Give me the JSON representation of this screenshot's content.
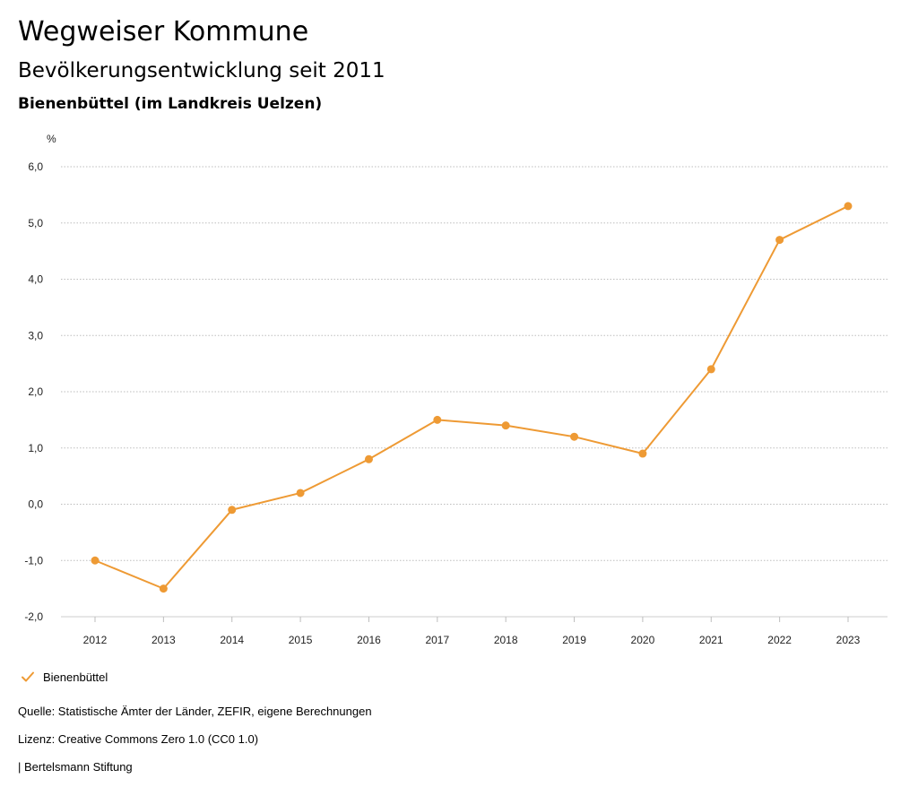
{
  "header": {
    "title": "Wegweiser Kommune",
    "subtitle": "Bevölkerungsentwicklung seit 2011",
    "region": "Bienenbüttel (im Landkreis Uelzen)"
  },
  "chart_data": {
    "type": "line",
    "ylabel": "%",
    "x": [
      "2012",
      "2013",
      "2014",
      "2015",
      "2016",
      "2017",
      "2018",
      "2019",
      "2020",
      "2021",
      "2022",
      "2023"
    ],
    "series": [
      {
        "name": "Bienenbüttel",
        "color": "#EE9A34",
        "values": [
          -1.0,
          -1.5,
          -0.1,
          0.2,
          0.8,
          1.5,
          1.4,
          1.2,
          0.9,
          2.4,
          4.7,
          5.3
        ]
      }
    ],
    "ylim": [
      -2.0,
      6.0
    ],
    "yticks": [
      6.0,
      5.0,
      4.0,
      3.0,
      2.0,
      1.0,
      0.0,
      -1.0,
      -2.0
    ],
    "ytick_labels": [
      "6,0",
      "5,0",
      "4,0",
      "3,0",
      "2,0",
      "1,0",
      "0,0",
      "-1,0",
      "-2,0"
    ],
    "grid": true,
    "legend_position": "bottom-left"
  },
  "legend": {
    "label": "Bienenbüttel",
    "icon": "checkmark-icon",
    "color": "#EE9A34"
  },
  "footer": {
    "source": "Quelle: Statistische Ämter der Länder, ZEFIR, eigene Berechnungen",
    "license": "Lizenz: Creative Commons Zero 1.0 (CC0 1.0)",
    "publisher": "| Bertelsmann Stiftung"
  }
}
